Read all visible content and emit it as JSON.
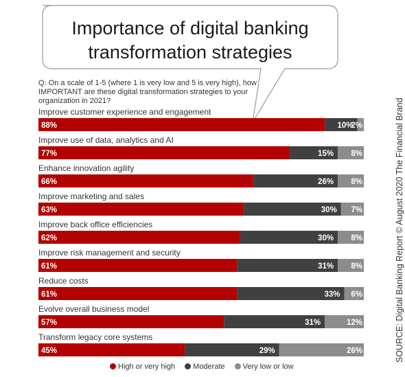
{
  "chart_data": {
    "type": "bar",
    "orientation": "horizontal",
    "stacked": true,
    "title": "Importance of digital banking transformation strategies",
    "question": "Q: On a scale of 1-5 (where 1 is very low and 5 is very high), how IMPORTANT are these digital transformation strategies to your organization in 2021?",
    "categories": [
      "Improve customer experience and engagement",
      "Improve use of data, analytics and AI",
      "Enhance innovation agility",
      "Improve marketing and sales",
      "Improve back office efficiencies",
      "Improve risk management and security",
      "Reduce costs",
      "Evolve overall business model",
      "Transform legacy core systems"
    ],
    "series": [
      {
        "name": "High or very high",
        "color": "#b30000",
        "values": [
          88,
          77,
          66,
          63,
          62,
          61,
          61,
          57,
          45
        ],
        "labels": [
          "88%",
          "77%",
          "66%",
          "63%",
          "62%",
          "61%",
          "61%",
          "57%",
          "45%"
        ]
      },
      {
        "name": "Moderate",
        "color": "#404040",
        "values": [
          10,
          15,
          26,
          30,
          30,
          31,
          33,
          31,
          29
        ],
        "labels": [
          "10%",
          "15%",
          "26%",
          "30%",
          "30%",
          "31%",
          "33%",
          "31%",
          "29%"
        ]
      },
      {
        "name": "Very low or low",
        "color": "#8c8c8c",
        "values": [
          2,
          8,
          8,
          7,
          8,
          8,
          6,
          12,
          26
        ],
        "labels": [
          "2%",
          "8%",
          "8%",
          "7%",
          "8%",
          "8%",
          "6%",
          "12%",
          "26%"
        ]
      }
    ],
    "xlim": [
      0,
      100
    ],
    "grid": false,
    "legend": "bottom",
    "source": "SOURCE: Digital Banking Report © August 2020 The Financial Brand"
  }
}
